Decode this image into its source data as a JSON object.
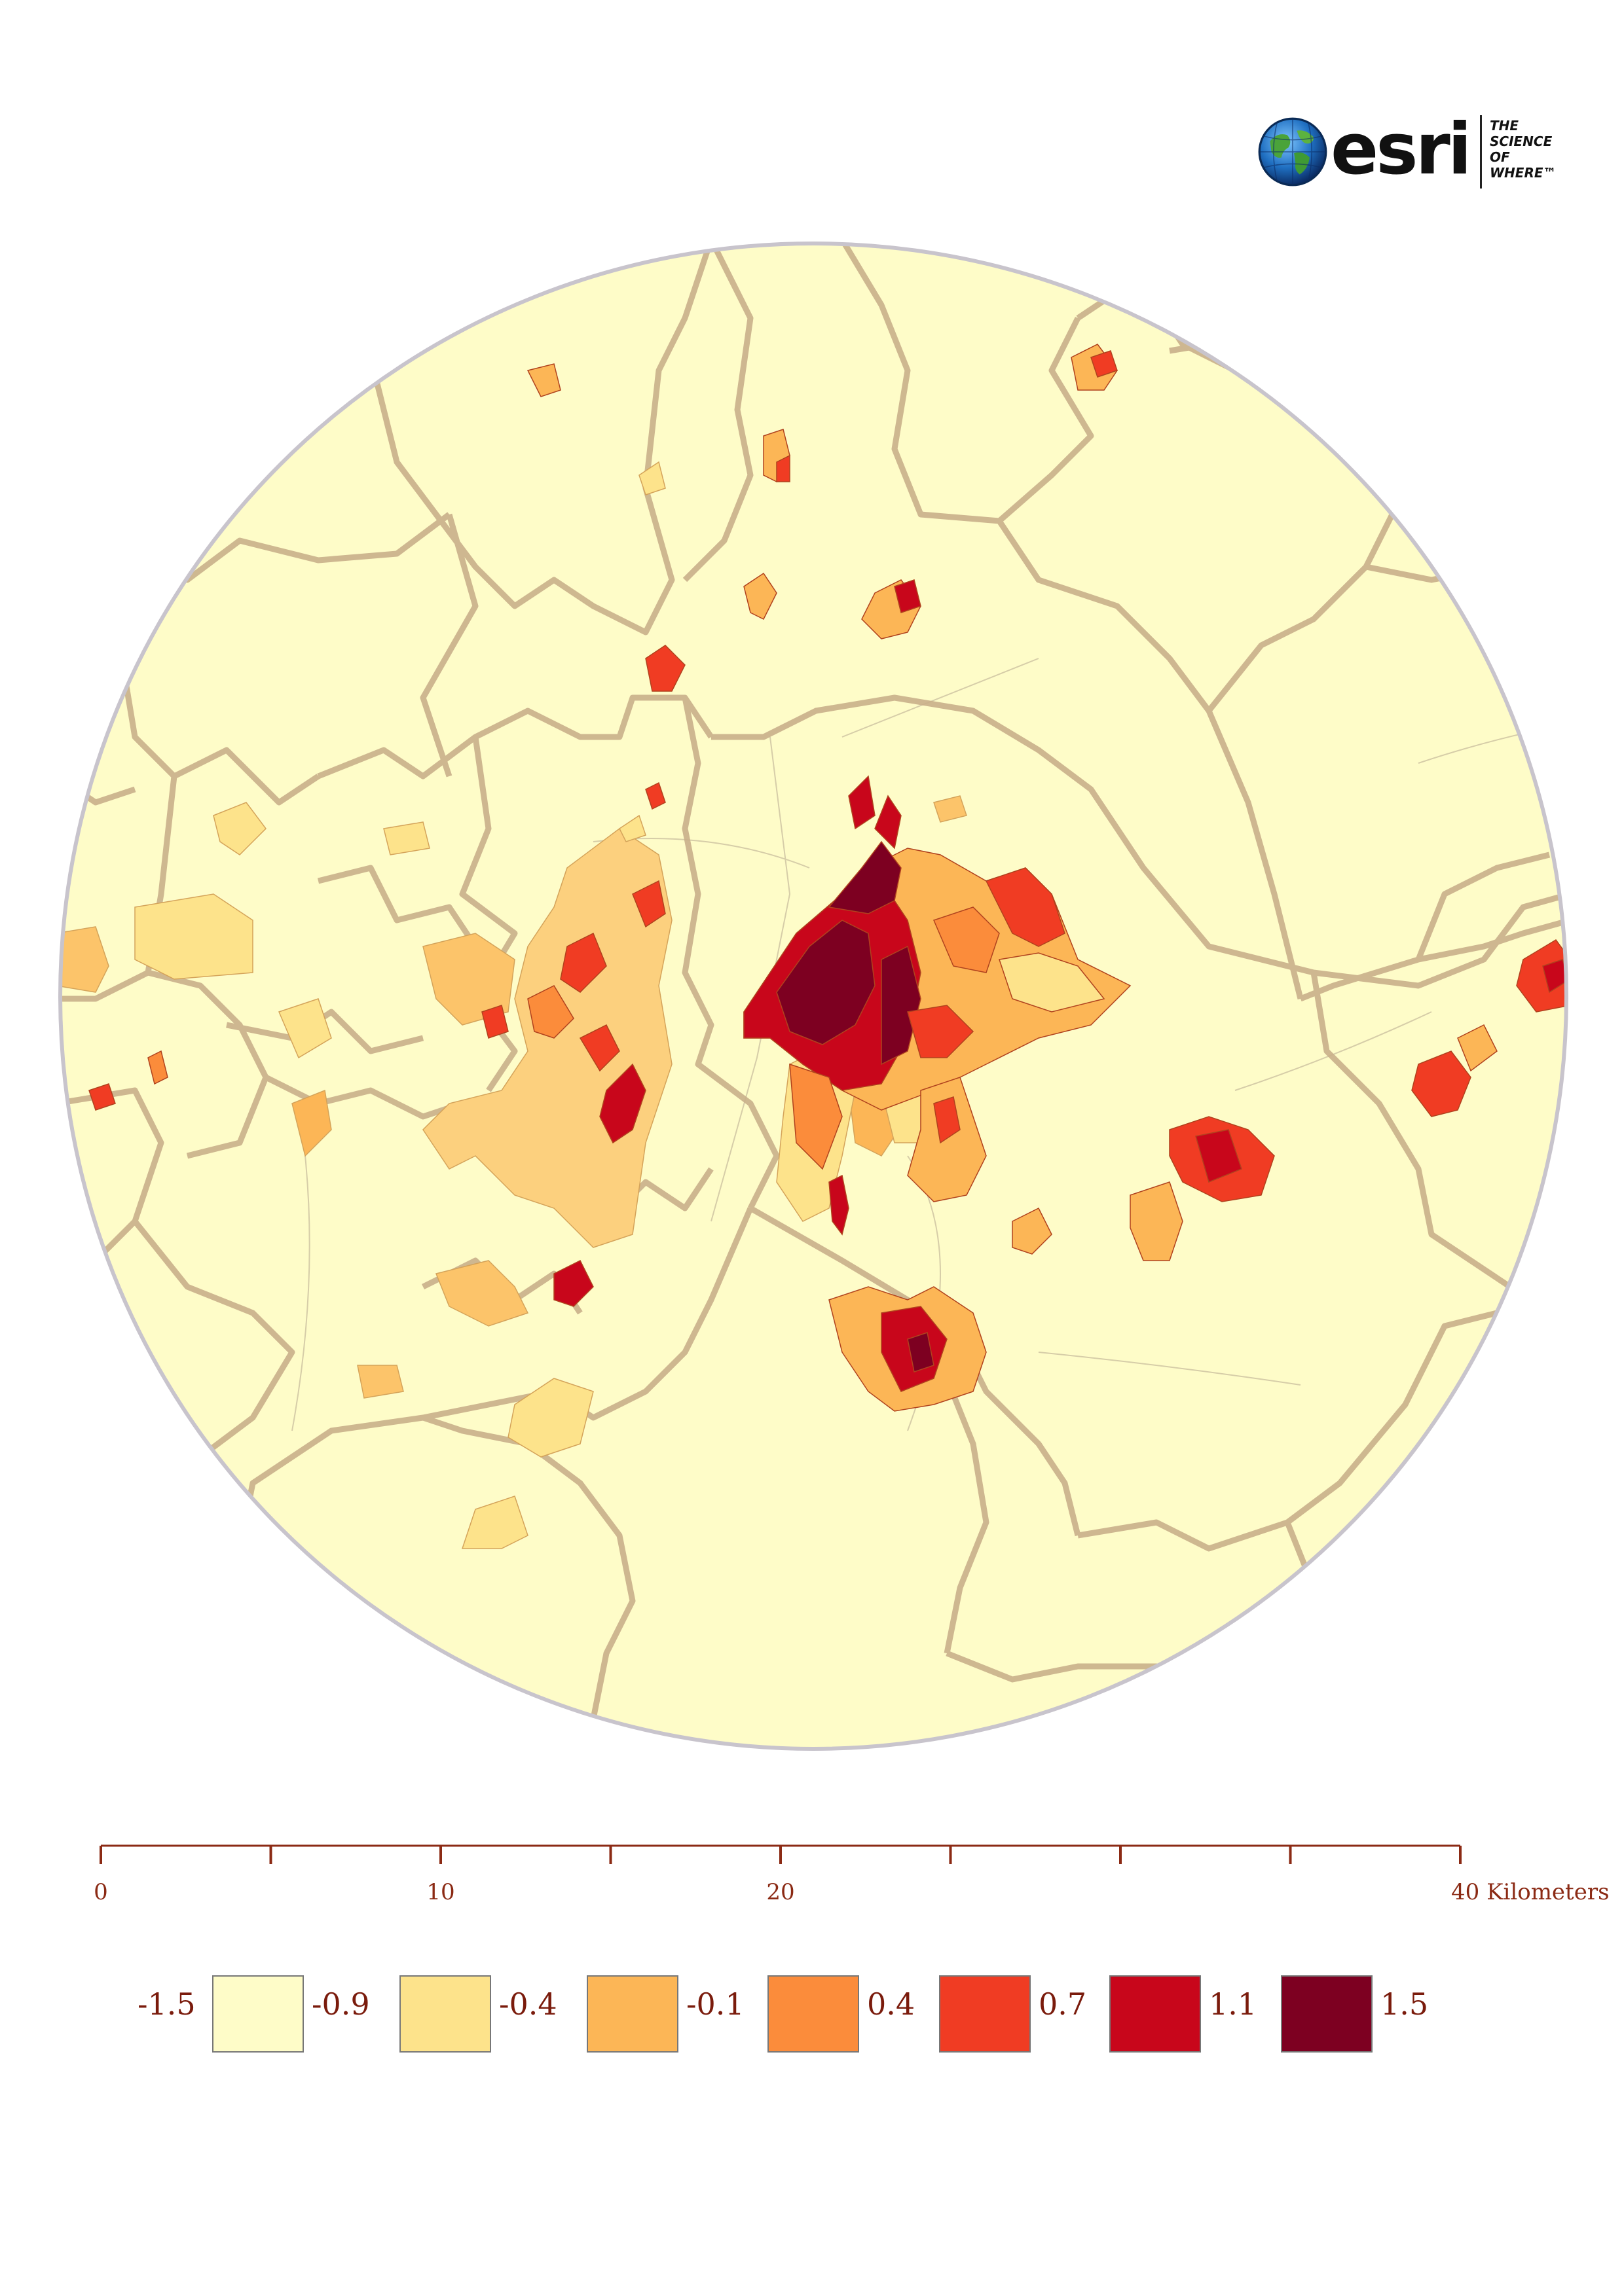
{
  "logo": {
    "brand": "esri",
    "tagline": [
      "THE",
      "SCIENCE",
      "OF",
      "WHERE™"
    ]
  },
  "map": {
    "type": "choropleth",
    "background_color": "#fefcc8",
    "boundary_color": "#c9b08a",
    "outline_color": "#c8c4cc"
  },
  "scale_bar": {
    "ticks": [
      {
        "value": 0,
        "label": "0"
      },
      {
        "value": 5,
        "label": ""
      },
      {
        "value": 10,
        "label": "10"
      },
      {
        "value": 15,
        "label": ""
      },
      {
        "value": 20,
        "label": "20"
      },
      {
        "value": 25,
        "label": ""
      },
      {
        "value": 30,
        "label": ""
      },
      {
        "value": 35,
        "label": ""
      },
      {
        "value": 40,
        "label": "40 Kilometers"
      }
    ],
    "color": "#8b2a14"
  },
  "legend": {
    "breaks": [
      "-1.5",
      "-0.9",
      "-0.4",
      "-0.1",
      "0.4",
      "0.7",
      "1.1",
      "1.5"
    ],
    "colors": [
      "#fefcc8",
      "#fde38b",
      "#fcb656",
      "#fb8c3b",
      "#f03c23",
      "#c8061b",
      "#7d0021"
    ],
    "text_color": "#7a1b0c"
  }
}
